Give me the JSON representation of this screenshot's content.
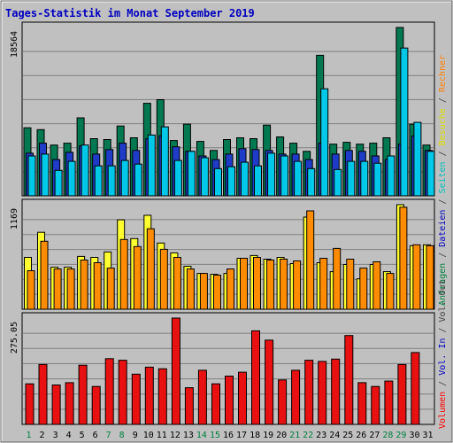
{
  "chart_data": {
    "type": "bar",
    "title": "Tages-Statistik im Monat September 2019",
    "x_labels": [
      "1",
      "2",
      "3",
      "4",
      "5",
      "6",
      "7",
      "8",
      "9",
      "10",
      "11",
      "12",
      "13",
      "14",
      "15",
      "16",
      "17",
      "18",
      "19",
      "20",
      "21",
      "22",
      "23",
      "24",
      "25",
      "26",
      "27",
      "28",
      "29",
      "30",
      "31"
    ],
    "weekend_days": [
      1,
      7,
      8,
      14,
      15,
      21,
      22,
      28,
      29
    ],
    "right_axis_labels": {
      "top": [
        {
          "text": "Anfragen",
          "color": "#008040"
        },
        {
          "text": " / ",
          "color": "#404040"
        },
        {
          "text": "Dateien",
          "color": "#0000C0"
        },
        {
          "text": " / ",
          "color": "#404040"
        },
        {
          "text": "Seiten",
          "color": "#00C0C0"
        },
        {
          "text": " / ",
          "color": "#404040"
        },
        {
          "text": "Besuche",
          "color": "#E0E000"
        },
        {
          "text": " / ",
          "color": "#404040"
        },
        {
          "text": "Rechner",
          "color": "#FF8000"
        }
      ],
      "bottom": [
        {
          "text": "Volumen",
          "color": "#FF0000"
        },
        {
          "text": " / ",
          "color": "#404040"
        },
        {
          "text": "Vol. In",
          "color": "#0000C0"
        },
        {
          "text": " / ",
          "color": "#404040"
        },
        {
          "text": "Vol. Out",
          "color": "#404040"
        }
      ]
    },
    "panels": [
      {
        "ymax_label": "18564",
        "ymax": 18564,
        "series": [
          {
            "name": "Anfragen",
            "color": "#007850",
            "values": [
              7500,
              7300,
              5600,
              5800,
              8600,
              6300,
              6200,
              7700,
              6400,
              10200,
              10600,
              6100,
              7900,
              6000,
              5000,
              6200,
              6400,
              6300,
              7800,
              6500,
              5800,
              4900,
              15500,
              5700,
              5900,
              5700,
              5800,
              6400,
              18564,
              7900,
              5600
            ]
          },
          {
            "name": "Dateien",
            "color": "#1E3CC8",
            "values": [
              4700,
              5800,
              4000,
              4800,
              5500,
              4600,
              5100,
              5800,
              5000,
              6300,
              6600,
              5400,
              4900,
              4400,
              4000,
              4600,
              5200,
              5100,
              5000,
              4600,
              4600,
              4000,
              5800,
              4600,
              5000,
              4900,
              4400,
              4000,
              5700,
              6600,
              5000
            ]
          },
          {
            "name": "Seiten",
            "color": "#00C8E8",
            "values": [
              4400,
              4600,
              2800,
              3800,
              5600,
              3300,
              3300,
              3900,
              3500,
              6700,
              7600,
              3900,
              4900,
              4200,
              3000,
              3200,
              3700,
              3300,
              4700,
              4400,
              3800,
              3000,
              11800,
              2900,
              3800,
              3800,
              3600,
              4400,
              16300,
              8100,
              4900
            ]
          }
        ]
      },
      {
        "ymax_label": "1169",
        "ymax": 1169,
        "series": [
          {
            "name": "Besuche",
            "color": "#FFFF30",
            "values": [
              580,
              860,
              470,
              470,
              590,
              580,
              640,
              1000,
              790,
              1050,
              740,
              630,
              480,
              400,
              390,
              400,
              570,
              600,
              560,
              580,
              510,
              1030,
              520,
              420,
              500,
              340,
              500,
              420,
              1169,
              710,
              720
            ]
          },
          {
            "name": "Rechner",
            "color": "#FF8C00",
            "values": [
              430,
              760,
              450,
              450,
              550,
              520,
              460,
              780,
              700,
              900,
              670,
              580,
              450,
              400,
              380,
              450,
              570,
              580,
              550,
              560,
              540,
              1100,
              570,
              680,
              560,
              460,
              530,
              400,
              1140,
              720,
              710
            ]
          }
        ]
      },
      {
        "ymax_label": "275.05",
        "ymax": 275.05,
        "series": [
          {
            "name": "Volumen",
            "color": "#E81010",
            "values": [
              105,
              155,
              102,
              108,
              153,
              98,
              170,
              166,
              130,
              148,
              144,
              275,
              95,
              140,
              105,
              125,
              135,
              242,
              218,
              115,
              140,
              166,
              163,
              169,
              230,
              108,
              98,
              112,
              155,
              186,
              0
            ]
          }
        ]
      }
    ]
  }
}
